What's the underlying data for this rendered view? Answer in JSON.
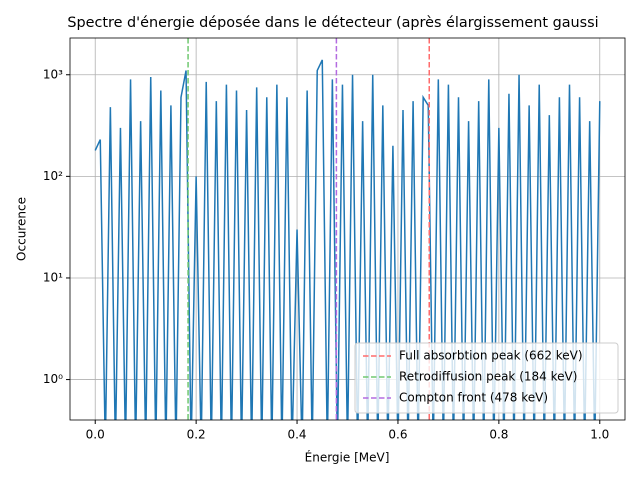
{
  "chart_data": {
    "type": "line",
    "title": "Spectre d'énergie déposée dans le détecteur (après élargissement gaussi",
    "x_label": "Énergie [MeV]",
    "y_label": "Occurence",
    "y_scale": "log",
    "grid": true,
    "legend": "lower right",
    "xlim": [
      -0.05,
      1.05
    ],
    "ylim": [
      0.4,
      2300
    ],
    "xticks": [
      {
        "value": 0,
        "label": "0.0"
      },
      0.2,
      0.4,
      0.6,
      0.8,
      {
        "value": 1,
        "label": "1.0"
      }
    ],
    "yticks": [
      {
        "value": 1,
        "label": "10⁰"
      },
      {
        "value": 10,
        "label": "10¹"
      },
      {
        "value": 100,
        "label": "10²"
      },
      {
        "value": 1000,
        "label": "10³"
      }
    ],
    "x": [
      0,
      0.01,
      0.02,
      0.03,
      0.04,
      0.05,
      0.06,
      0.07,
      0.08,
      0.09,
      0.1,
      0.11,
      0.12,
      0.13,
      0.14,
      0.15,
      0.16,
      0.17,
      0.18,
      0.19,
      0.2,
      0.21,
      0.22,
      0.23,
      0.24,
      0.25,
      0.26,
      0.27,
      0.28,
      0.29,
      0.3,
      0.31,
      0.32,
      0.33,
      0.34,
      0.35,
      0.36,
      0.37,
      0.38,
      0.39,
      0.4,
      0.41,
      0.42,
      0.43,
      0.44,
      0.45,
      0.46,
      0.47,
      0.48,
      0.49,
      0.5,
      0.51,
      0.52,
      0.53,
      0.54,
      0.55,
      0.56,
      0.57,
      0.58,
      0.59,
      0.6,
      0.61,
      0.62,
      0.63,
      0.64,
      0.65,
      0.66,
      0.67,
      0.68,
      0.69,
      0.7,
      0.71,
      0.72,
      0.73,
      0.74,
      0.75,
      0.76,
      0.77,
      0.78,
      0.79,
      0.8,
      0.81,
      0.82,
      0.83,
      0.84,
      0.85,
      0.86,
      0.87,
      0.88,
      0.89,
      0.9,
      0.91,
      0.92,
      0.93,
      0.94,
      0.95,
      0.96,
      0.97,
      0.98,
      0.99,
      1
    ],
    "series": [
      {
        "color": "#1f77b4",
        "values": [
          180,
          230,
          0,
          480,
          0,
          300,
          0,
          900,
          0,
          350,
          0,
          950,
          0,
          700,
          0,
          500,
          0,
          600,
          1100,
          0,
          100,
          0,
          850,
          0,
          550,
          0,
          800,
          0,
          700,
          0,
          450,
          0,
          750,
          0,
          600,
          0,
          800,
          0,
          600,
          0,
          30,
          0,
          700,
          0,
          1100,
          1400,
          0,
          900,
          0,
          800,
          0,
          1000,
          0,
          350,
          0,
          1000,
          0,
          500,
          0,
          200,
          0,
          450,
          0,
          550,
          0,
          600,
          500,
          0,
          900,
          0,
          800,
          0,
          600,
          0,
          350,
          0,
          550,
          0,
          900,
          0,
          300,
          0,
          650,
          0,
          1000,
          0,
          500,
          0,
          800,
          0,
          400,
          0,
          600,
          0,
          800,
          0,
          600,
          0,
          350,
          0,
          550
        ]
      }
    ],
    "vlines": [
      {
        "x": 0.662,
        "label": "Full absorbtion peak (662 keV)",
        "color": "#ff6b6b"
      },
      {
        "x": 0.184,
        "label": "Retrodiffusion peak (184 keV)",
        "color": "#70c870"
      },
      {
        "x": 0.478,
        "label": "Compton front (478 keV)",
        "color": "#b36be0"
      }
    ]
  }
}
